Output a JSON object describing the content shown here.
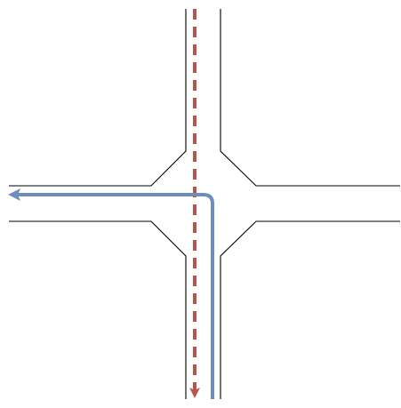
{
  "diagram": {
    "type": "intersection-paths",
    "background_color": "#ffffff",
    "road_edge_color": "#000000",
    "paths": [
      {
        "id": "through-path",
        "style": "dashed",
        "color": "#b85450",
        "direction": "down",
        "arrowhead": "end"
      },
      {
        "id": "left-turn-path",
        "style": "solid",
        "color": "#6c8ebf",
        "direction": "up-then-left",
        "arrowhead": "end"
      }
    ]
  }
}
